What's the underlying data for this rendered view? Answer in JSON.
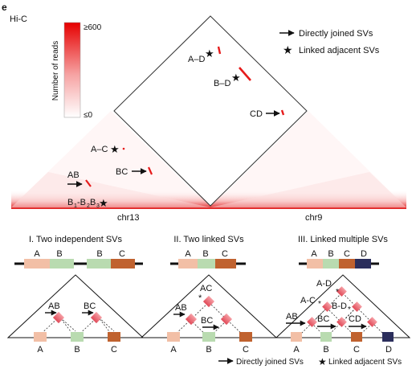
{
  "panel": {
    "letter": "e",
    "assay": "Hi-C"
  },
  "colorbar": {
    "title": "Number of reads",
    "max_label": "≥600",
    "min_label": "≤0",
    "color_high": "#e60000",
    "color_low": "#ffffff"
  },
  "legend": {
    "arrow_label": "Directly joined SVs",
    "star_label": "Linked adjacent SVs"
  },
  "heatmap": {
    "chromosomes": [
      "chr13",
      "chr9"
    ],
    "annotations": {
      "ad": "A–D",
      "bd": "B–D",
      "cd": "CD",
      "ac": "A–C",
      "bc": "BC",
      "ab": "AB",
      "b1": "B",
      "s1": "1",
      "b2": "-B",
      "s2": "2",
      "b3": "B",
      "s3": "3"
    }
  },
  "schematics": [
    {
      "title": "I. Two independent SVs",
      "segments": [
        "A",
        "B",
        "B",
        "C"
      ],
      "bottom_labels": [
        "A",
        "B",
        "C"
      ],
      "junctions": [
        "AB",
        "BC"
      ]
    },
    {
      "title": "II. Two linked SVs",
      "segments": [
        "A",
        "B",
        "C"
      ],
      "bottom_labels": [
        "A",
        "B",
        "C"
      ],
      "junctions": [
        "AB",
        "BC",
        "AC"
      ]
    },
    {
      "title": "III. Linked multiple SVs",
      "segments": [
        "A",
        "B",
        "C",
        "D"
      ],
      "bottom_labels": [
        "A",
        "B",
        "C",
        "D"
      ],
      "junctions": [
        "A-D",
        "A-C",
        "B-D",
        "AB",
        "BC",
        "CD"
      ]
    }
  ],
  "segment_colors": {
    "A": "#f2bfa6",
    "B": "#b9dbb0",
    "C": "#c0622f",
    "D": "#2b2e5c"
  },
  "hotspot_color": "#e8707a"
}
